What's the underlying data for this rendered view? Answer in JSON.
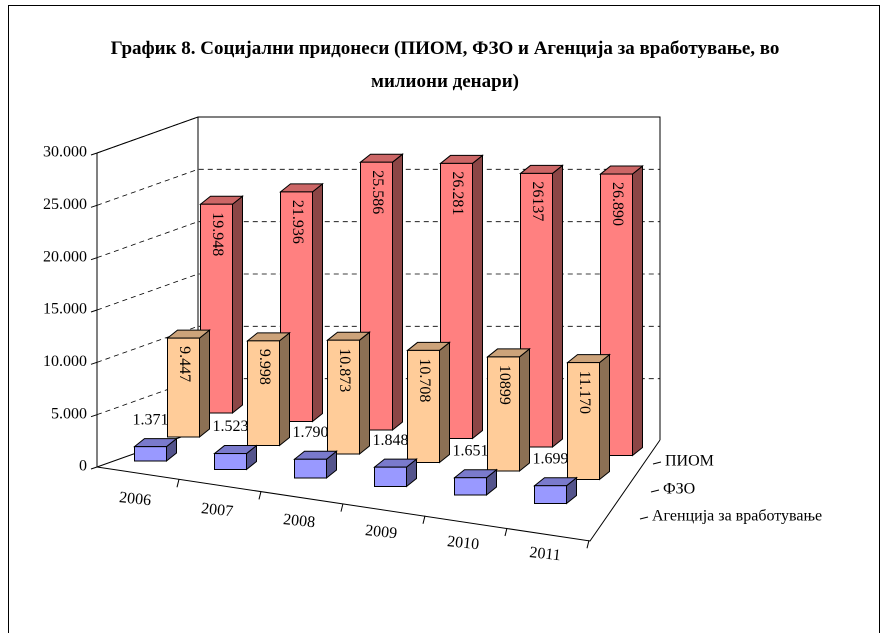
{
  "chart_data": {
    "type": "bar3d",
    "title": "График 8. Социјални придонеси (ПИОМ, ФЗО и Агенција за вработување, во милиони денари)",
    "categories": [
      "2006",
      "2007",
      "2008",
      "2009",
      "2010",
      "2011"
    ],
    "series": [
      {
        "name": "Агенција за вработување",
        "color": "#9999ff",
        "values": [
          1371,
          1523,
          1790,
          1848,
          1651,
          1699
        ],
        "value_labels": [
          "1.371",
          "1.523",
          "1.790",
          "1.848",
          "1.651",
          "1.699"
        ]
      },
      {
        "name": "ФЗО",
        "color": "#ffcc99",
        "values": [
          9447,
          9998,
          10873,
          10708,
          10899,
          11170
        ],
        "value_labels": [
          "9.447",
          "9.998",
          "10.873",
          "10.708",
          "10899",
          "11.170"
        ]
      },
      {
        "name": "ПИОМ",
        "color": "#ff8080",
        "values": [
          19948,
          21936,
          25586,
          26281,
          26137,
          26890
        ],
        "value_labels": [
          "19.948",
          "21.936",
          "25.586",
          "26.281",
          "26137",
          "26.890"
        ]
      }
    ],
    "ylim": [
      0,
      30000
    ],
    "yticks": [
      0,
      {
        "value": 5000,
        "label": "5.000"
      },
      {
        "value": 10000,
        "label": "10.000"
      },
      {
        "value": 15000,
        "label": "15.000"
      },
      {
        "value": 20000,
        "label": "20.000"
      },
      {
        "value": 25000,
        "label": "25.000"
      },
      {
        "value": 30000,
        "label": "30.000"
      }
    ],
    "grid": true
  }
}
